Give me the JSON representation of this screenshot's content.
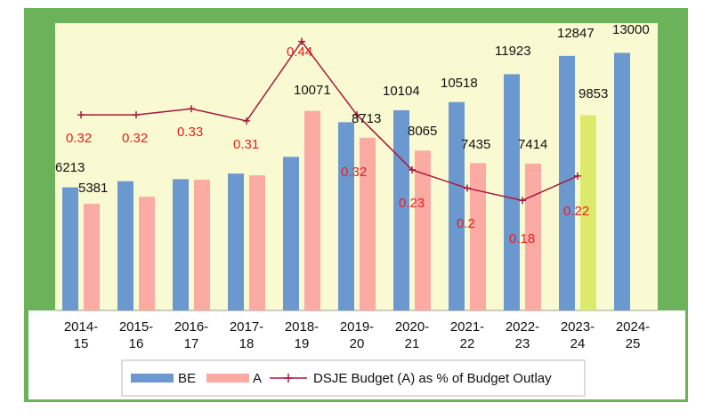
{
  "chart_data": {
    "type": "bar",
    "categories": [
      "2014-15",
      "2015-16",
      "2016-17",
      "2017-18",
      "2018-19",
      "2019-20",
      "2020-21",
      "2021-22",
      "2022-23",
      "2023-24",
      "2024-25"
    ],
    "category_lines": [
      [
        "2014-",
        "15"
      ],
      [
        "2015-",
        "16"
      ],
      [
        "2016-",
        "17"
      ],
      [
        "2017-",
        "18"
      ],
      [
        "2018-",
        "19"
      ],
      [
        "2019-",
        "20"
      ],
      [
        "2020-",
        "21"
      ],
      [
        "2021-",
        "22"
      ],
      [
        "2022-",
        "23"
      ],
      [
        "2023-",
        "24"
      ],
      [
        "2024-",
        "25"
      ]
    ],
    "series": [
      {
        "name": "BE",
        "values": [
          6213,
          6524,
          6627,
          6908,
          7750,
          9500,
          10104,
          10518,
          11923,
          12847,
          13000
        ]
      },
      {
        "name": "A",
        "values": [
          5381,
          5735,
          6597,
          6819,
          10071,
          8713,
          8065,
          7435,
          7414,
          9853,
          null
        ]
      },
      {
        "name": "DSJE Budget (A) as % of Budget Outlay",
        "values": [
          0.32,
          0.32,
          0.33,
          0.31,
          0.44,
          0.32,
          0.23,
          0.2,
          0.18,
          0.22,
          null
        ]
      }
    ],
    "bar_labels": {
      "BE": [
        "6213",
        "",
        "",
        "",
        "",
        "",
        "10104",
        "10518",
        "11923",
        "12847",
        "13000"
      ],
      "A": [
        "5381",
        "",
        "",
        "",
        "10071",
        "8713",
        "8065",
        "7435",
        "7414",
        "9853",
        ""
      ]
    },
    "line_labels": [
      "0.32",
      "0.32",
      "0.33",
      "0.31",
      "0.44",
      "0.32",
      "0.23",
      "0.2",
      "0.18",
      "0.22",
      ""
    ],
    "ylim": [
      0,
      14500
    ],
    "pct_ylim": [
      0,
      0.47
    ],
    "grid": false,
    "legend_position": "bottom",
    "title": "",
    "xlabel": "",
    "ylabel": ""
  },
  "legend": {
    "be_label": "BE",
    "a_label": "A",
    "line_label": "DSJE Budget (A) as % of Budget Outlay"
  },
  "colors": {
    "be": "#6b99cf",
    "a": "#fbaaa4",
    "a_highlight": "#dcea6b",
    "line": "#a8163c",
    "pct_text": "#e81d1d",
    "plot_bg": "#fafad2",
    "border": "#6bb25a"
  }
}
